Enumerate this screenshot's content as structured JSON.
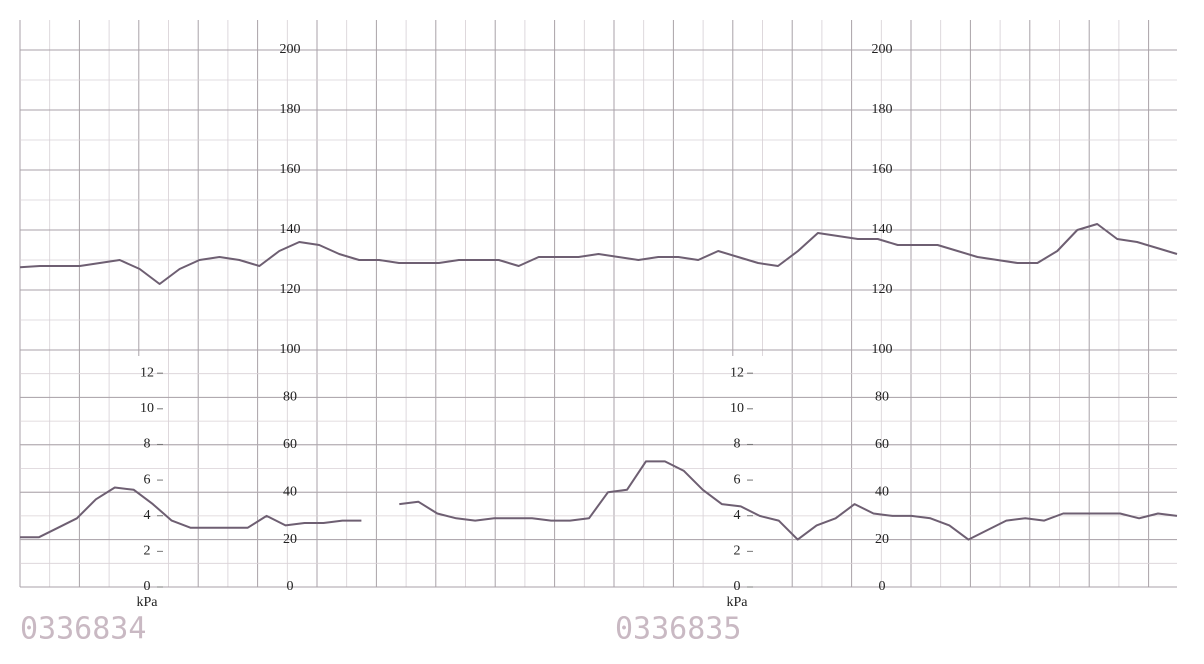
{
  "chart_data": [
    {
      "type": "line",
      "color": "#6e5f72",
      "ylim": [
        100,
        210
      ],
      "yticks": [
        120,
        140,
        160,
        180,
        200
      ],
      "grid": true,
      "values": [
        127.6,
        128,
        128,
        128,
        129,
        130,
        127,
        122,
        127,
        130,
        131,
        130,
        128,
        133,
        136,
        135,
        132,
        130,
        130,
        129,
        129,
        129,
        130,
        130,
        130,
        128,
        131,
        131,
        131,
        132,
        131,
        130,
        131,
        131,
        130,
        133,
        131,
        129,
        128,
        133,
        139,
        138,
        137,
        137,
        135,
        135,
        135,
        133,
        131,
        130,
        129,
        129,
        133,
        140,
        142,
        137,
        136,
        134,
        132
      ]
    },
    {
      "type": "line",
      "color": "#6e5f72",
      "ylim": [
        0,
        100
      ],
      "yticks": [
        0,
        20,
        40,
        60,
        80,
        100
      ],
      "grid": true,
      "y2lim": [
        0,
        13.3
      ],
      "y2ticks": [
        0,
        2,
        4,
        6,
        8,
        10,
        12
      ],
      "y2label": "kPa",
      "annotations": [
        "0336834",
        "0336835"
      ],
      "values": [
        21,
        21,
        25,
        29,
        37,
        42,
        41,
        35,
        28,
        25,
        25,
        25,
        25,
        30,
        26,
        27,
        27,
        28,
        28,
        null,
        35,
        36,
        31,
        29,
        28,
        29,
        29,
        29,
        28,
        28,
        29,
        40,
        41,
        53,
        53,
        49,
        41,
        35,
        34,
        30,
        28,
        20,
        26,
        29,
        35,
        31,
        30,
        30,
        29,
        26,
        20,
        24,
        28,
        29,
        28,
        31,
        31,
        31,
        31,
        29,
        31,
        30
      ]
    }
  ]
}
